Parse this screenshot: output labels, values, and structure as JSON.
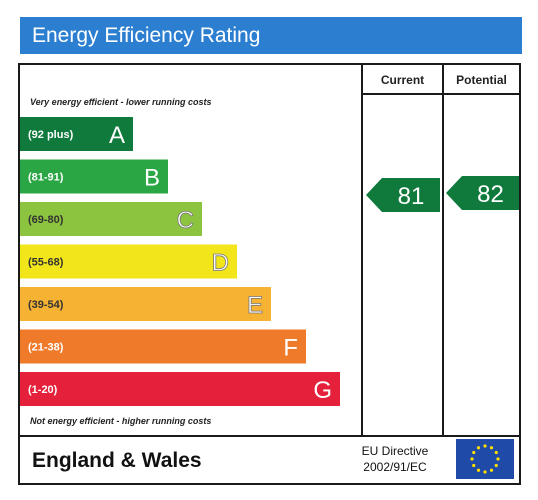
{
  "header": {
    "title": "Energy Efficiency Rating"
  },
  "columns": {
    "current": "Current",
    "potential": "Potential"
  },
  "notes": {
    "top": "Very energy efficient - lower running costs",
    "bottom": "Not energy efficient - higher running costs"
  },
  "footer": {
    "region": "England & Wales",
    "directive_line1": "EU Directive",
    "directive_line2": "2002/91/EC"
  },
  "chart_data": {
    "type": "bar",
    "title": "Energy Efficiency Rating",
    "bands": [
      {
        "range": "(92 plus)",
        "letter": "A",
        "color": "#0f7a3c"
      },
      {
        "range": "(81-91)",
        "letter": "B",
        "color": "#2aa744"
      },
      {
        "range": "(69-80)",
        "letter": "C",
        "color": "#8cc43f"
      },
      {
        "range": "(55-68)",
        "letter": "D",
        "color": "#f2e61a"
      },
      {
        "range": "(39-54)",
        "letter": "E",
        "color": "#f5b233"
      },
      {
        "range": "(21-38)",
        "letter": "F",
        "color": "#ef7a2a"
      },
      {
        "range": "(1-20)",
        "letter": "G",
        "color": "#e5203a"
      }
    ],
    "current": {
      "label": "Current",
      "value": 81,
      "band": "B",
      "color": "#0f7a3c"
    },
    "potential": {
      "label": "Potential",
      "value": 82,
      "band": "B",
      "color": "#0f7a3c"
    }
  }
}
